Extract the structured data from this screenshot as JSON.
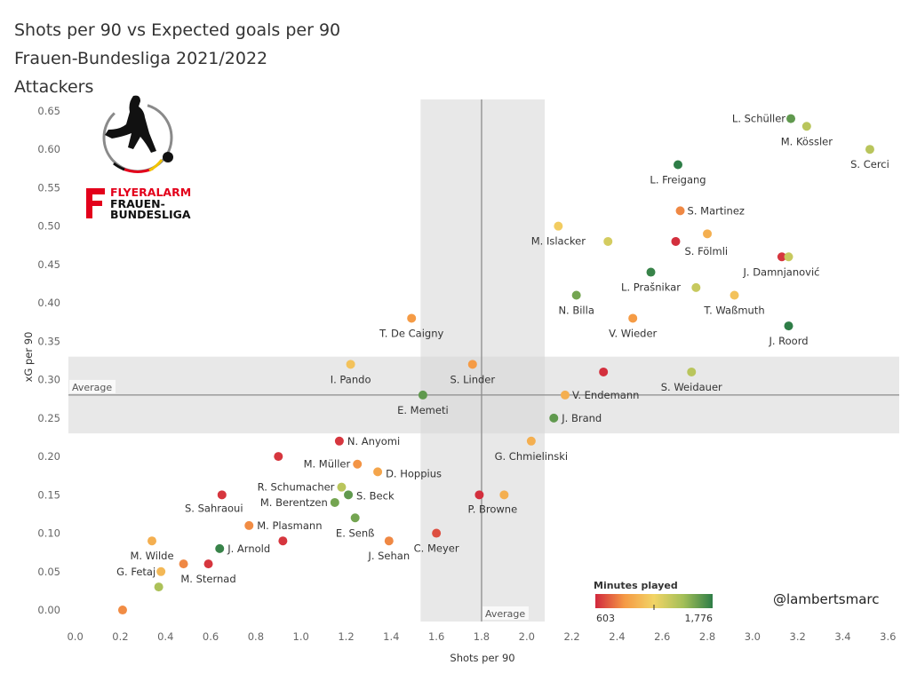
{
  "titles": [
    "Shots per 90 vs Expected goals per 90",
    "Frauen-Bundesliga 2021/2022",
    "Attackers"
  ],
  "handle": "@lambertsmarc",
  "logo": {
    "line1": "FLYERALARM",
    "line2": "FRAUEN-",
    "line3": "BUNDESLIGA",
    "red": "#e3001b"
  },
  "chart_data": {
    "type": "scatter",
    "xlabel": "Shots per 90",
    "ylabel": "xG per 90",
    "xlim": [
      -0.03,
      3.65
    ],
    "ylim": [
      -0.015,
      0.665
    ],
    "xticks": [
      "0.0",
      "0.2",
      "0.4",
      "0.6",
      "0.8",
      "1.0",
      "1.2",
      "1.4",
      "1.6",
      "1.8",
      "2.0",
      "2.2",
      "2.4",
      "2.6",
      "2.8",
      "3.0",
      "3.2",
      "3.4",
      "3.6"
    ],
    "yticks": [
      "0.00",
      "0.05",
      "0.10",
      "0.15",
      "0.20",
      "0.25",
      "0.30",
      "0.35",
      "0.40",
      "0.45",
      "0.50",
      "0.55",
      "0.60",
      "0.65"
    ],
    "average": {
      "x": 1.8,
      "y": 0.28,
      "label": "Average"
    },
    "bands": {
      "x": [
        1.53,
        2.08
      ],
      "y": [
        0.23,
        0.33
      ]
    },
    "color_scale": {
      "title": "Minutes played",
      "min": 603,
      "max": 1776,
      "min_label": "603",
      "max_label": "1,776",
      "colors": [
        "#d1283d",
        "#f59a45",
        "#f2d465",
        "#a3bf58",
        "#2e7d47"
      ]
    },
    "points": [
      {
        "name": "L. Schüller",
        "x": 3.17,
        "y": 0.64,
        "minutes": 1650,
        "lx": -6,
        "ly": 4,
        "anchor": "end"
      },
      {
        "name": "M. Kössler",
        "x": 3.24,
        "y": 0.63,
        "minutes": 1400,
        "lx": 0,
        "ly": 21,
        "anchor": "middle"
      },
      {
        "name": "S. Cerci",
        "x": 3.52,
        "y": 0.6,
        "minutes": 1400,
        "lx": 0,
        "ly": 21,
        "anchor": "middle"
      },
      {
        "name": "L. Freigang",
        "x": 2.67,
        "y": 0.58,
        "minutes": 1776,
        "lx": 0,
        "ly": 21,
        "anchor": "middle"
      },
      {
        "name": "S. Martinez",
        "x": 2.68,
        "y": 0.52,
        "minutes": 850,
        "lx": 8,
        "ly": 4,
        "anchor": "start"
      },
      {
        "name": "M. Islacker",
        "x": 2.14,
        "y": 0.5,
        "minutes": 1150,
        "lx": 0,
        "ly": 21,
        "anchor": "middle"
      },
      {
        "name": "",
        "x": 2.8,
        "y": 0.49,
        "minutes": 1000,
        "lx": 0,
        "ly": 0,
        "anchor": "middle"
      },
      {
        "name": "",
        "x": 2.36,
        "y": 0.48,
        "minutes": 1300,
        "lx": 0,
        "ly": 0,
        "anchor": "middle"
      },
      {
        "name": "S. Fölmli",
        "x": 2.66,
        "y": 0.48,
        "minutes": 620,
        "lx": 10,
        "ly": 15,
        "anchor": "start"
      },
      {
        "name": "",
        "x": 3.13,
        "y": 0.46,
        "minutes": 640,
        "lx": 0,
        "ly": 0,
        "anchor": "middle"
      },
      {
        "name": "J. Damnjanović",
        "x": 3.16,
        "y": 0.46,
        "minutes": 1350,
        "lx": -8,
        "ly": 21,
        "anchor": "middle"
      },
      {
        "name": "L. Prašnikar",
        "x": 2.55,
        "y": 0.44,
        "minutes": 1750,
        "lx": 0,
        "ly": 21,
        "anchor": "middle"
      },
      {
        "name": "",
        "x": 2.75,
        "y": 0.42,
        "minutes": 1350,
        "lx": 0,
        "ly": 0,
        "anchor": "middle"
      },
      {
        "name": "N. Billa",
        "x": 2.22,
        "y": 0.41,
        "minutes": 1600,
        "lx": 0,
        "ly": 21,
        "anchor": "middle"
      },
      {
        "name": "T. Waßmuth",
        "x": 2.92,
        "y": 0.41,
        "minutes": 1100,
        "lx": 0,
        "ly": 21,
        "anchor": "middle"
      },
      {
        "name": "T. De Caigny",
        "x": 1.49,
        "y": 0.38,
        "minutes": 900,
        "lx": 0,
        "ly": 21,
        "anchor": "middle"
      },
      {
        "name": "V. Wieder",
        "x": 2.47,
        "y": 0.38,
        "minutes": 900,
        "lx": 0,
        "ly": 21,
        "anchor": "middle"
      },
      {
        "name": "J. Roord",
        "x": 3.16,
        "y": 0.37,
        "minutes": 1776,
        "lx": 0,
        "ly": 21,
        "anchor": "middle"
      },
      {
        "name": "I. Pando",
        "x": 1.22,
        "y": 0.32,
        "minutes": 1100,
        "lx": 0,
        "ly": 21,
        "anchor": "middle"
      },
      {
        "name": "S. Linder",
        "x": 1.76,
        "y": 0.32,
        "minutes": 900,
        "lx": 0,
        "ly": 21,
        "anchor": "middle"
      },
      {
        "name": "",
        "x": 2.34,
        "y": 0.31,
        "minutes": 620,
        "lx": 0,
        "ly": 0,
        "anchor": "middle"
      },
      {
        "name": "S. Weidauer",
        "x": 2.73,
        "y": 0.31,
        "minutes": 1400,
        "lx": 0,
        "ly": 21,
        "anchor": "middle"
      },
      {
        "name": "E. Memeti",
        "x": 1.54,
        "y": 0.28,
        "minutes": 1650,
        "lx": 0,
        "ly": 21,
        "anchor": "middle"
      },
      {
        "name": "V. Endemann",
        "x": 2.17,
        "y": 0.28,
        "minutes": 1000,
        "lx": 8,
        "ly": 4,
        "anchor": "start"
      },
      {
        "name": "J. Brand",
        "x": 2.12,
        "y": 0.25,
        "minutes": 1650,
        "lx": 9,
        "ly": 4,
        "anchor": "start"
      },
      {
        "name": "N. Anyomi",
        "x": 1.17,
        "y": 0.22,
        "minutes": 640,
        "lx": 9,
        "ly": 4,
        "anchor": "start"
      },
      {
        "name": "G. Chmielinski",
        "x": 2.02,
        "y": 0.22,
        "minutes": 1000,
        "lx": 0,
        "ly": 21,
        "anchor": "middle"
      },
      {
        "name": "",
        "x": 0.9,
        "y": 0.2,
        "minutes": 640,
        "lx": 0,
        "ly": 0,
        "anchor": "middle"
      },
      {
        "name": "M. Müller",
        "x": 1.25,
        "y": 0.19,
        "minutes": 880,
        "lx": -8,
        "ly": 4,
        "anchor": "end"
      },
      {
        "name": "D. Hoppius",
        "x": 1.34,
        "y": 0.18,
        "minutes": 950,
        "lx": 9,
        "ly": 6,
        "anchor": "start"
      },
      {
        "name": "R. Schumacher",
        "x": 1.18,
        "y": 0.16,
        "minutes": 1400,
        "lx": -8,
        "ly": 4,
        "anchor": "end"
      },
      {
        "name": "S. Beck",
        "x": 1.21,
        "y": 0.15,
        "minutes": 1650,
        "lx": 9,
        "ly": 5,
        "anchor": "start"
      },
      {
        "name": "S. Sahraoui",
        "x": 0.65,
        "y": 0.15,
        "minutes": 640,
        "lx": -9,
        "ly": 19,
        "anchor": "middle"
      },
      {
        "name": "M. Berentzen",
        "x": 1.15,
        "y": 0.14,
        "minutes": 1600,
        "lx": -8,
        "ly": 4,
        "anchor": "end"
      },
      {
        "name": "",
        "x": 1.79,
        "y": 0.15,
        "minutes": 620,
        "lx": 0,
        "ly": 0,
        "anchor": "middle"
      },
      {
        "name": "P. Browne",
        "x": 1.9,
        "y": 0.15,
        "minutes": 1000,
        "lx": -13,
        "ly": 20,
        "anchor": "middle"
      },
      {
        "name": "M. Plasmann",
        "x": 0.77,
        "y": 0.11,
        "minutes": 860,
        "lx": 9,
        "ly": 4,
        "anchor": "start"
      },
      {
        "name": "E. Senß",
        "x": 1.24,
        "y": 0.12,
        "minutes": 1600,
        "lx": 0,
        "ly": 21,
        "anchor": "middle"
      },
      {
        "name": "C. Meyer",
        "x": 1.6,
        "y": 0.1,
        "minutes": 700,
        "lx": 0,
        "ly": 21,
        "anchor": "middle"
      },
      {
        "name": "M. Wilde",
        "x": 0.34,
        "y": 0.09,
        "minutes": 1000,
        "lx": 0,
        "ly": 21,
        "anchor": "middle"
      },
      {
        "name": "",
        "x": 0.92,
        "y": 0.09,
        "minutes": 640,
        "lx": 0,
        "ly": 0,
        "anchor": "middle"
      },
      {
        "name": "J. Sehan",
        "x": 1.39,
        "y": 0.09,
        "minutes": 850,
        "lx": 0,
        "ly": 21,
        "anchor": "middle"
      },
      {
        "name": "J. Arnold",
        "x": 0.64,
        "y": 0.08,
        "minutes": 1750,
        "lx": 9,
        "ly": 4,
        "anchor": "start"
      },
      {
        "name": "",
        "x": 0.48,
        "y": 0.06,
        "minutes": 850,
        "lx": 0,
        "ly": 0,
        "anchor": "middle"
      },
      {
        "name": "M. Sternad",
        "x": 0.59,
        "y": 0.06,
        "minutes": 640,
        "lx": 0,
        "ly": 21,
        "anchor": "middle"
      },
      {
        "name": "G. Fetaj",
        "x": 0.38,
        "y": 0.05,
        "minutes": 1050,
        "lx": -6,
        "ly": 4,
        "anchor": "end"
      },
      {
        "name": "",
        "x": 0.37,
        "y": 0.03,
        "minutes": 1450,
        "lx": 0,
        "ly": 0,
        "anchor": "middle"
      },
      {
        "name": "",
        "x": 0.21,
        "y": 0.0,
        "minutes": 860,
        "lx": 0,
        "ly": 0,
        "anchor": "middle"
      }
    ]
  }
}
